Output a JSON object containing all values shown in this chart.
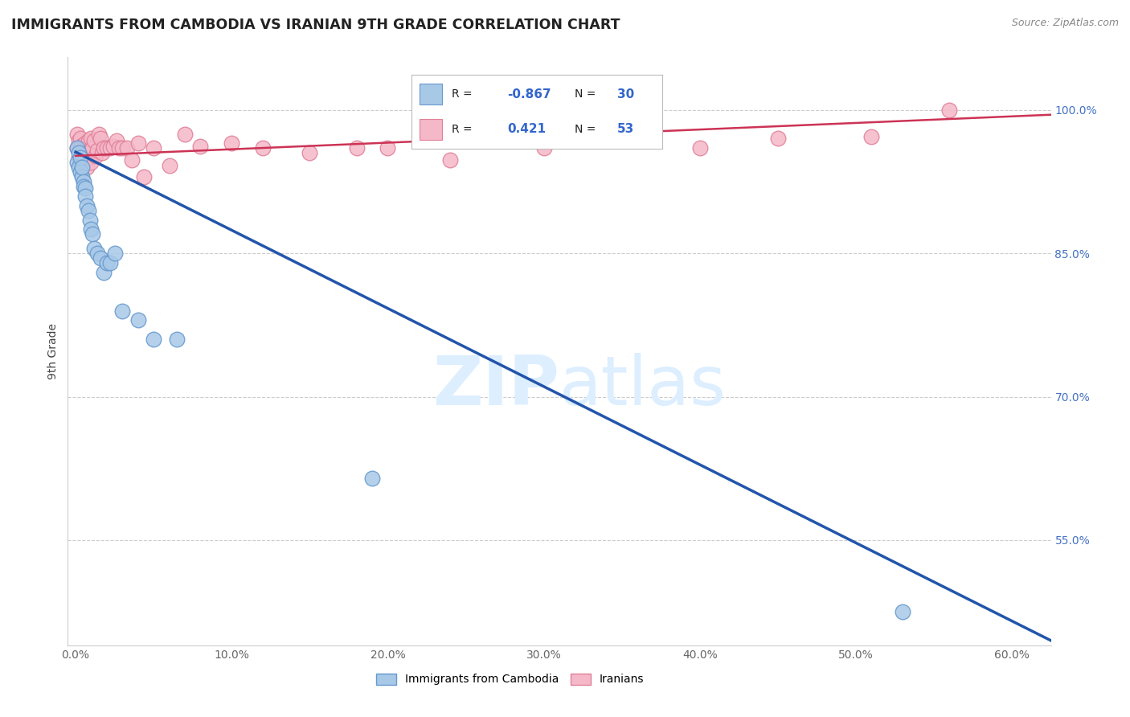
{
  "title": "IMMIGRANTS FROM CAMBODIA VS IRANIAN 9TH GRADE CORRELATION CHART",
  "source": "Source: ZipAtlas.com",
  "ylabel": "9th Grade",
  "xlabel_ticks": [
    "0.0%",
    "10.0%",
    "20.0%",
    "30.0%",
    "40.0%",
    "50.0%",
    "60.0%"
  ],
  "xlabel_vals": [
    0.0,
    0.1,
    0.2,
    0.3,
    0.4,
    0.5,
    0.6
  ],
  "ylabel_ticks": [
    "100.0%",
    "85.0%",
    "70.0%",
    "55.0%"
  ],
  "ylabel_vals": [
    1.0,
    0.85,
    0.7,
    0.55
  ],
  "xlim": [
    -0.005,
    0.625
  ],
  "ylim": [
    0.44,
    1.055
  ],
  "cambodia_R": -0.867,
  "cambodia_N": 30,
  "iranian_R": 0.421,
  "iranian_N": 53,
  "cambodia_color": "#a8c8e8",
  "cambodia_edge": "#6699cc",
  "iranian_color": "#f5b8c8",
  "iranian_edge": "#e08098",
  "trendline_cambodia_color": "#2255aa",
  "trendline_iranian_color": "#cc3355",
  "watermark_color": "#ddeeff",
  "cambodia_x": [
    0.001,
    0.001,
    0.002,
    0.002,
    0.003,
    0.003,
    0.004,
    0.004,
    0.005,
    0.005,
    0.006,
    0.006,
    0.007,
    0.008,
    0.009,
    0.01,
    0.011,
    0.012,
    0.014,
    0.016,
    0.018,
    0.02,
    0.022,
    0.025,
    0.03,
    0.04,
    0.05,
    0.065,
    0.19,
    0.53
  ],
  "cambodia_y": [
    0.96,
    0.945,
    0.955,
    0.94,
    0.935,
    0.95,
    0.93,
    0.94,
    0.925,
    0.92,
    0.918,
    0.91,
    0.9,
    0.895,
    0.885,
    0.875,
    0.87,
    0.855,
    0.85,
    0.845,
    0.83,
    0.84,
    0.84,
    0.85,
    0.79,
    0.78,
    0.76,
    0.76,
    0.615,
    0.475
  ],
  "iranian_x": [
    0.001,
    0.001,
    0.002,
    0.002,
    0.003,
    0.003,
    0.004,
    0.004,
    0.005,
    0.005,
    0.006,
    0.006,
    0.007,
    0.007,
    0.008,
    0.008,
    0.009,
    0.01,
    0.01,
    0.011,
    0.012,
    0.013,
    0.014,
    0.015,
    0.016,
    0.017,
    0.018,
    0.02,
    0.022,
    0.024,
    0.026,
    0.028,
    0.03,
    0.033,
    0.036,
    0.04,
    0.044,
    0.05,
    0.06,
    0.07,
    0.08,
    0.1,
    0.12,
    0.15,
    0.18,
    0.2,
    0.24,
    0.3,
    0.35,
    0.4,
    0.45,
    0.51,
    0.56
  ],
  "iranian_y": [
    0.96,
    0.975,
    0.95,
    0.968,
    0.96,
    0.97,
    0.955,
    0.963,
    0.945,
    0.958,
    0.952,
    0.965,
    0.94,
    0.96,
    0.95,
    0.968,
    0.958,
    0.945,
    0.97,
    0.96,
    0.968,
    0.952,
    0.958,
    0.975,
    0.97,
    0.955,
    0.96,
    0.96,
    0.96,
    0.962,
    0.968,
    0.96,
    0.96,
    0.96,
    0.948,
    0.965,
    0.93,
    0.96,
    0.942,
    0.975,
    0.962,
    0.965,
    0.96,
    0.955,
    0.96,
    0.96,
    0.948,
    0.96,
    0.968,
    0.96,
    0.97,
    0.972,
    1.0
  ],
  "trendline_cambodia_x0": 0.0,
  "trendline_cambodia_y0": 0.956,
  "trendline_cambodia_x1": 0.625,
  "trendline_cambodia_y1": 0.445,
  "trendline_iranian_x0": 0.0,
  "trendline_iranian_y0": 0.952,
  "trendline_iranian_x1": 0.625,
  "trendline_iranian_y1": 0.995
}
